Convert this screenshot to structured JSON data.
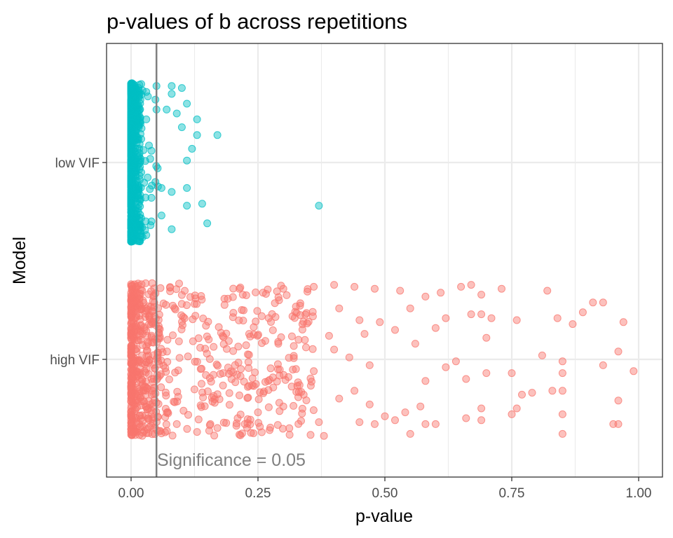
{
  "chart_data": {
    "type": "scatter",
    "title": "p-values of b across repetitions",
    "xlabel": "p-value",
    "ylabel": "Model",
    "xlim": [
      0.0,
      1.0
    ],
    "x_ticks": [
      0.0,
      0.25,
      0.5,
      0.75,
      1.0
    ],
    "x_tick_labels": [
      "0.00",
      "0.25",
      "0.50",
      "0.75",
      "1.00"
    ],
    "categories": [
      "high VIF",
      "low VIF"
    ],
    "grid": true,
    "reference_line": {
      "x": 0.05,
      "label": "Significance = 0.05"
    },
    "colors": {
      "high_vif": "#F8766D",
      "low_vif": "#00BFC4",
      "ref_line": "#7f7f7f",
      "grid": "#ebebeb",
      "panel_border": "#333333"
    },
    "series": [
      {
        "name": "low VIF",
        "note": "~1000 jittered points, heavily concentrated near p = 0; selected visible outliers listed below",
        "points": [
          {
            "x": 0.02,
            "y": 0.4
          },
          {
            "x": 0.05,
            "y": 0.39
          },
          {
            "x": 0.08,
            "y": 0.39
          },
          {
            "x": 0.1,
            "y": 0.38
          },
          {
            "x": 0.03,
            "y": 0.36
          },
          {
            "x": 0.08,
            "y": 0.35
          },
          {
            "x": 0.07,
            "y": 0.27
          },
          {
            "x": 0.11,
            "y": 0.3
          },
          {
            "x": 0.05,
            "y": 0.27
          },
          {
            "x": 0.09,
            "y": 0.25
          },
          {
            "x": 0.13,
            "y": 0.14
          },
          {
            "x": 0.1,
            "y": 0.18
          },
          {
            "x": 0.12,
            "y": 0.07
          },
          {
            "x": 0.13,
            "y": 0.22
          },
          {
            "x": 0.17,
            "y": 0.14
          },
          {
            "x": 0.11,
            "y": 0.01
          },
          {
            "x": 0.06,
            "y": -0.13
          },
          {
            "x": 0.08,
            "y": -0.15
          },
          {
            "x": 0.11,
            "y": -0.13
          },
          {
            "x": 0.11,
            "y": -0.22
          },
          {
            "x": 0.14,
            "y": -0.21
          },
          {
            "x": 0.37,
            "y": -0.22
          },
          {
            "x": 0.15,
            "y": -0.31
          },
          {
            "x": 0.08,
            "y": -0.34
          },
          {
            "x": 0.06,
            "y": -0.27
          },
          {
            "x": 0.04,
            "y": -0.3
          },
          {
            "x": 0.03,
            "y": -0.37
          },
          {
            "x": 0.04,
            "y": -0.18
          },
          {
            "x": 0.02,
            "y": -0.05
          },
          {
            "x": 0.02,
            "y": 0.12
          },
          {
            "x": 0.03,
            "y": 0.22
          },
          {
            "x": 0.04,
            "y": 0.06
          }
        ]
      },
      {
        "name": "high VIF",
        "note": "~1000 jittered points spread across 0 to 1, densest near 0; representative visible points listed below",
        "points": [
          {
            "x": 0.65,
            "y": 0.37
          },
          {
            "x": 0.67,
            "y": 0.38
          },
          {
            "x": 0.73,
            "y": 0.36
          },
          {
            "x": 0.82,
            "y": 0.35
          },
          {
            "x": 0.69,
            "y": 0.33
          },
          {
            "x": 0.91,
            "y": 0.29
          },
          {
            "x": 0.93,
            "y": 0.29
          },
          {
            "x": 0.89,
            "y": 0.24
          },
          {
            "x": 0.67,
            "y": 0.23
          },
          {
            "x": 0.69,
            "y": 0.23
          },
          {
            "x": 0.71,
            "y": 0.21
          },
          {
            "x": 0.76,
            "y": 0.2
          },
          {
            "x": 0.84,
            "y": 0.21
          },
          {
            "x": 0.87,
            "y": 0.18
          },
          {
            "x": 0.97,
            "y": 0.19
          },
          {
            "x": 0.7,
            "y": 0.11
          },
          {
            "x": 0.81,
            "y": 0.02
          },
          {
            "x": 0.85,
            "y": -0.01
          },
          {
            "x": 0.93,
            "y": -0.03
          },
          {
            "x": 0.96,
            "y": 0.04
          },
          {
            "x": 0.99,
            "y": -0.06
          },
          {
            "x": 0.66,
            "y": -0.1
          },
          {
            "x": 0.7,
            "y": -0.07
          },
          {
            "x": 0.75,
            "y": -0.07
          },
          {
            "x": 0.85,
            "y": -0.07
          },
          {
            "x": 0.85,
            "y": -0.16
          },
          {
            "x": 0.83,
            "y": -0.16
          },
          {
            "x": 0.79,
            "y": -0.17
          },
          {
            "x": 0.77,
            "y": -0.18
          },
          {
            "x": 0.96,
            "y": -0.21
          },
          {
            "x": 0.69,
            "y": -0.25
          },
          {
            "x": 0.76,
            "y": -0.25
          },
          {
            "x": 0.66,
            "y": -0.3
          },
          {
            "x": 0.69,
            "y": -0.31
          },
          {
            "x": 0.75,
            "y": -0.28
          },
          {
            "x": 0.85,
            "y": -0.28
          },
          {
            "x": 0.95,
            "y": -0.33
          },
          {
            "x": 0.96,
            "y": -0.33
          },
          {
            "x": 0.85,
            "y": -0.38
          },
          {
            "x": 0.58,
            "y": -0.33
          },
          {
            "x": 0.6,
            "y": -0.33
          },
          {
            "x": 0.55,
            "y": -0.38
          },
          {
            "x": 0.52,
            "y": -0.31
          },
          {
            "x": 0.38,
            "y": -0.39
          },
          {
            "x": 0.37,
            "y": -0.32
          },
          {
            "x": 0.45,
            "y": -0.32
          },
          {
            "x": 0.48,
            "y": -0.33
          },
          {
            "x": 0.5,
            "y": -0.29
          },
          {
            "x": 0.54,
            "y": -0.27
          },
          {
            "x": 0.57,
            "y": -0.24
          },
          {
            "x": 0.47,
            "y": -0.23
          },
          {
            "x": 0.41,
            "y": -0.2
          },
          {
            "x": 0.44,
            "y": -0.16
          },
          {
            "x": 0.58,
            "y": -0.11
          },
          {
            "x": 0.62,
            "y": -0.04
          },
          {
            "x": 0.64,
            "y": -0.01
          },
          {
            "x": 0.56,
            "y": 0.08
          },
          {
            "x": 0.6,
            "y": 0.16
          },
          {
            "x": 0.62,
            "y": 0.21
          },
          {
            "x": 0.55,
            "y": 0.26
          },
          {
            "x": 0.58,
            "y": 0.32
          },
          {
            "x": 0.61,
            "y": 0.34
          },
          {
            "x": 0.53,
            "y": 0.35
          },
          {
            "x": 0.48,
            "y": 0.36
          },
          {
            "x": 0.44,
            "y": 0.37
          },
          {
            "x": 0.4,
            "y": 0.38
          },
          {
            "x": 0.36,
            "y": 0.37
          },
          {
            "x": 0.3,
            "y": 0.36
          },
          {
            "x": 0.26,
            "y": 0.34
          },
          {
            "x": 0.22,
            "y": 0.33
          },
          {
            "x": 0.41,
            "y": 0.26
          },
          {
            "x": 0.45,
            "y": 0.2
          },
          {
            "x": 0.49,
            "y": 0.19
          },
          {
            "x": 0.52,
            "y": 0.15
          },
          {
            "x": 0.46,
            "y": 0.13
          },
          {
            "x": 0.39,
            "y": 0.12
          },
          {
            "x": 0.33,
            "y": 0.1
          },
          {
            "x": 0.29,
            "y": 0.08
          },
          {
            "x": 0.4,
            "y": 0.05
          },
          {
            "x": 0.43,
            "y": 0.01
          },
          {
            "x": 0.47,
            "y": -0.03
          },
          {
            "x": 0.36,
            "y": -0.06
          },
          {
            "x": 0.31,
            "y": -0.09
          },
          {
            "x": 0.27,
            "y": -0.11
          },
          {
            "x": 0.23,
            "y": -0.14
          },
          {
            "x": 0.34,
            "y": -0.18
          },
          {
            "x": 0.3,
            "y": -0.24
          },
          {
            "x": 0.25,
            "y": -0.27
          },
          {
            "x": 0.21,
            "y": -0.3
          },
          {
            "x": 0.17,
            "y": -0.35
          },
          {
            "x": 0.13,
            "y": -0.37
          },
          {
            "x": 0.09,
            "y": -0.33
          }
        ]
      }
    ]
  }
}
